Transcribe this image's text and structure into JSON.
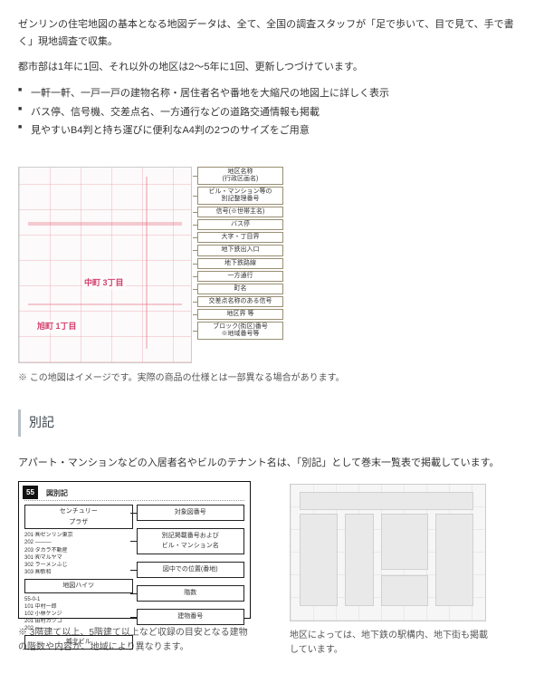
{
  "intro": {
    "p1": "ゼンリンの住宅地図の基本となる地図データは、全て、全国の調査スタッフが「足で歩いて、目で見て、手で書く」現地調査で収集。",
    "p2": "都市部は1年に1回、それ以外の地区は2～5年に1回、更新しつづけています。"
  },
  "bullets": [
    "一軒一軒、一戸一戸の建物名称・居住者名や番地を大縮尺の地図上に詳しく表示",
    "バス停、信号機、交差点名、一方通行などの道路交通情報も掲載",
    "見やすいB4判と持ち運びに便利なA4判の2つのサイズをご用意"
  ],
  "map_labels": {
    "pink1": "中町 3丁目",
    "pink2": "旭町 1丁目"
  },
  "legend": [
    "地区名称\n(行政区画名)",
    "ビル・マンション等の\n別記整理番号",
    "信号(※世帯主名)",
    "バス停",
    "大字・丁目界",
    "地下鉄出入口",
    "地下鉄路線",
    "一方通行",
    "町名",
    "交差点名称のある信号",
    "地区界 等",
    "ブロック(街区)番号\n※地域番号等"
  ],
  "map_note": "※ この地図はイメージです。実際の商品の仕様とは一部異なる場合があります。",
  "section_title": "別記",
  "section_lead": "アパート・マンションなどの入居者名やビルのテナント名は、「別記」として巻末一覧表で掲載しています。",
  "bekki": {
    "num": "55",
    "title": "図別記",
    "building1": "センチュリー\nプラザ",
    "building2": "地図ハイツ",
    "building3": "城北ビル",
    "left_rows": [
      "201 ㈱ゼンリン東京",
      "202 ———",
      "203 タカラ不動産",
      "301 ㈲マルヤマ",
      "302 ラーメンふじ",
      "303 ㈱新和",
      "55-0-1",
      "101 中村一郎",
      "102 小林ケンジ",
      "201 田村カツコ",
      "202 ———",
      "203 西田マサル",
      "中川ビル",
      "1F ———",
      "101 相原ビル",
      "201 ———",
      "202 ———",
      "203 ———"
    ],
    "right_tags": [
      "対象図番号",
      "別記掲載番号および\nビル・マンション名",
      "図中での位置(番地)",
      "階数",
      "建物番号"
    ]
  },
  "caption_left": "※ 3階建て以上、5階建て以上など収録の目安となる建物の階数や内容が、地域により異なります。",
  "caption_right": "地区によっては、地下鉄の駅構内、地下街も掲載しています。",
  "colors": {
    "accent_pink": "#d23f6b",
    "legend_border": "#988e73",
    "section_border": "#b7c0c7"
  }
}
